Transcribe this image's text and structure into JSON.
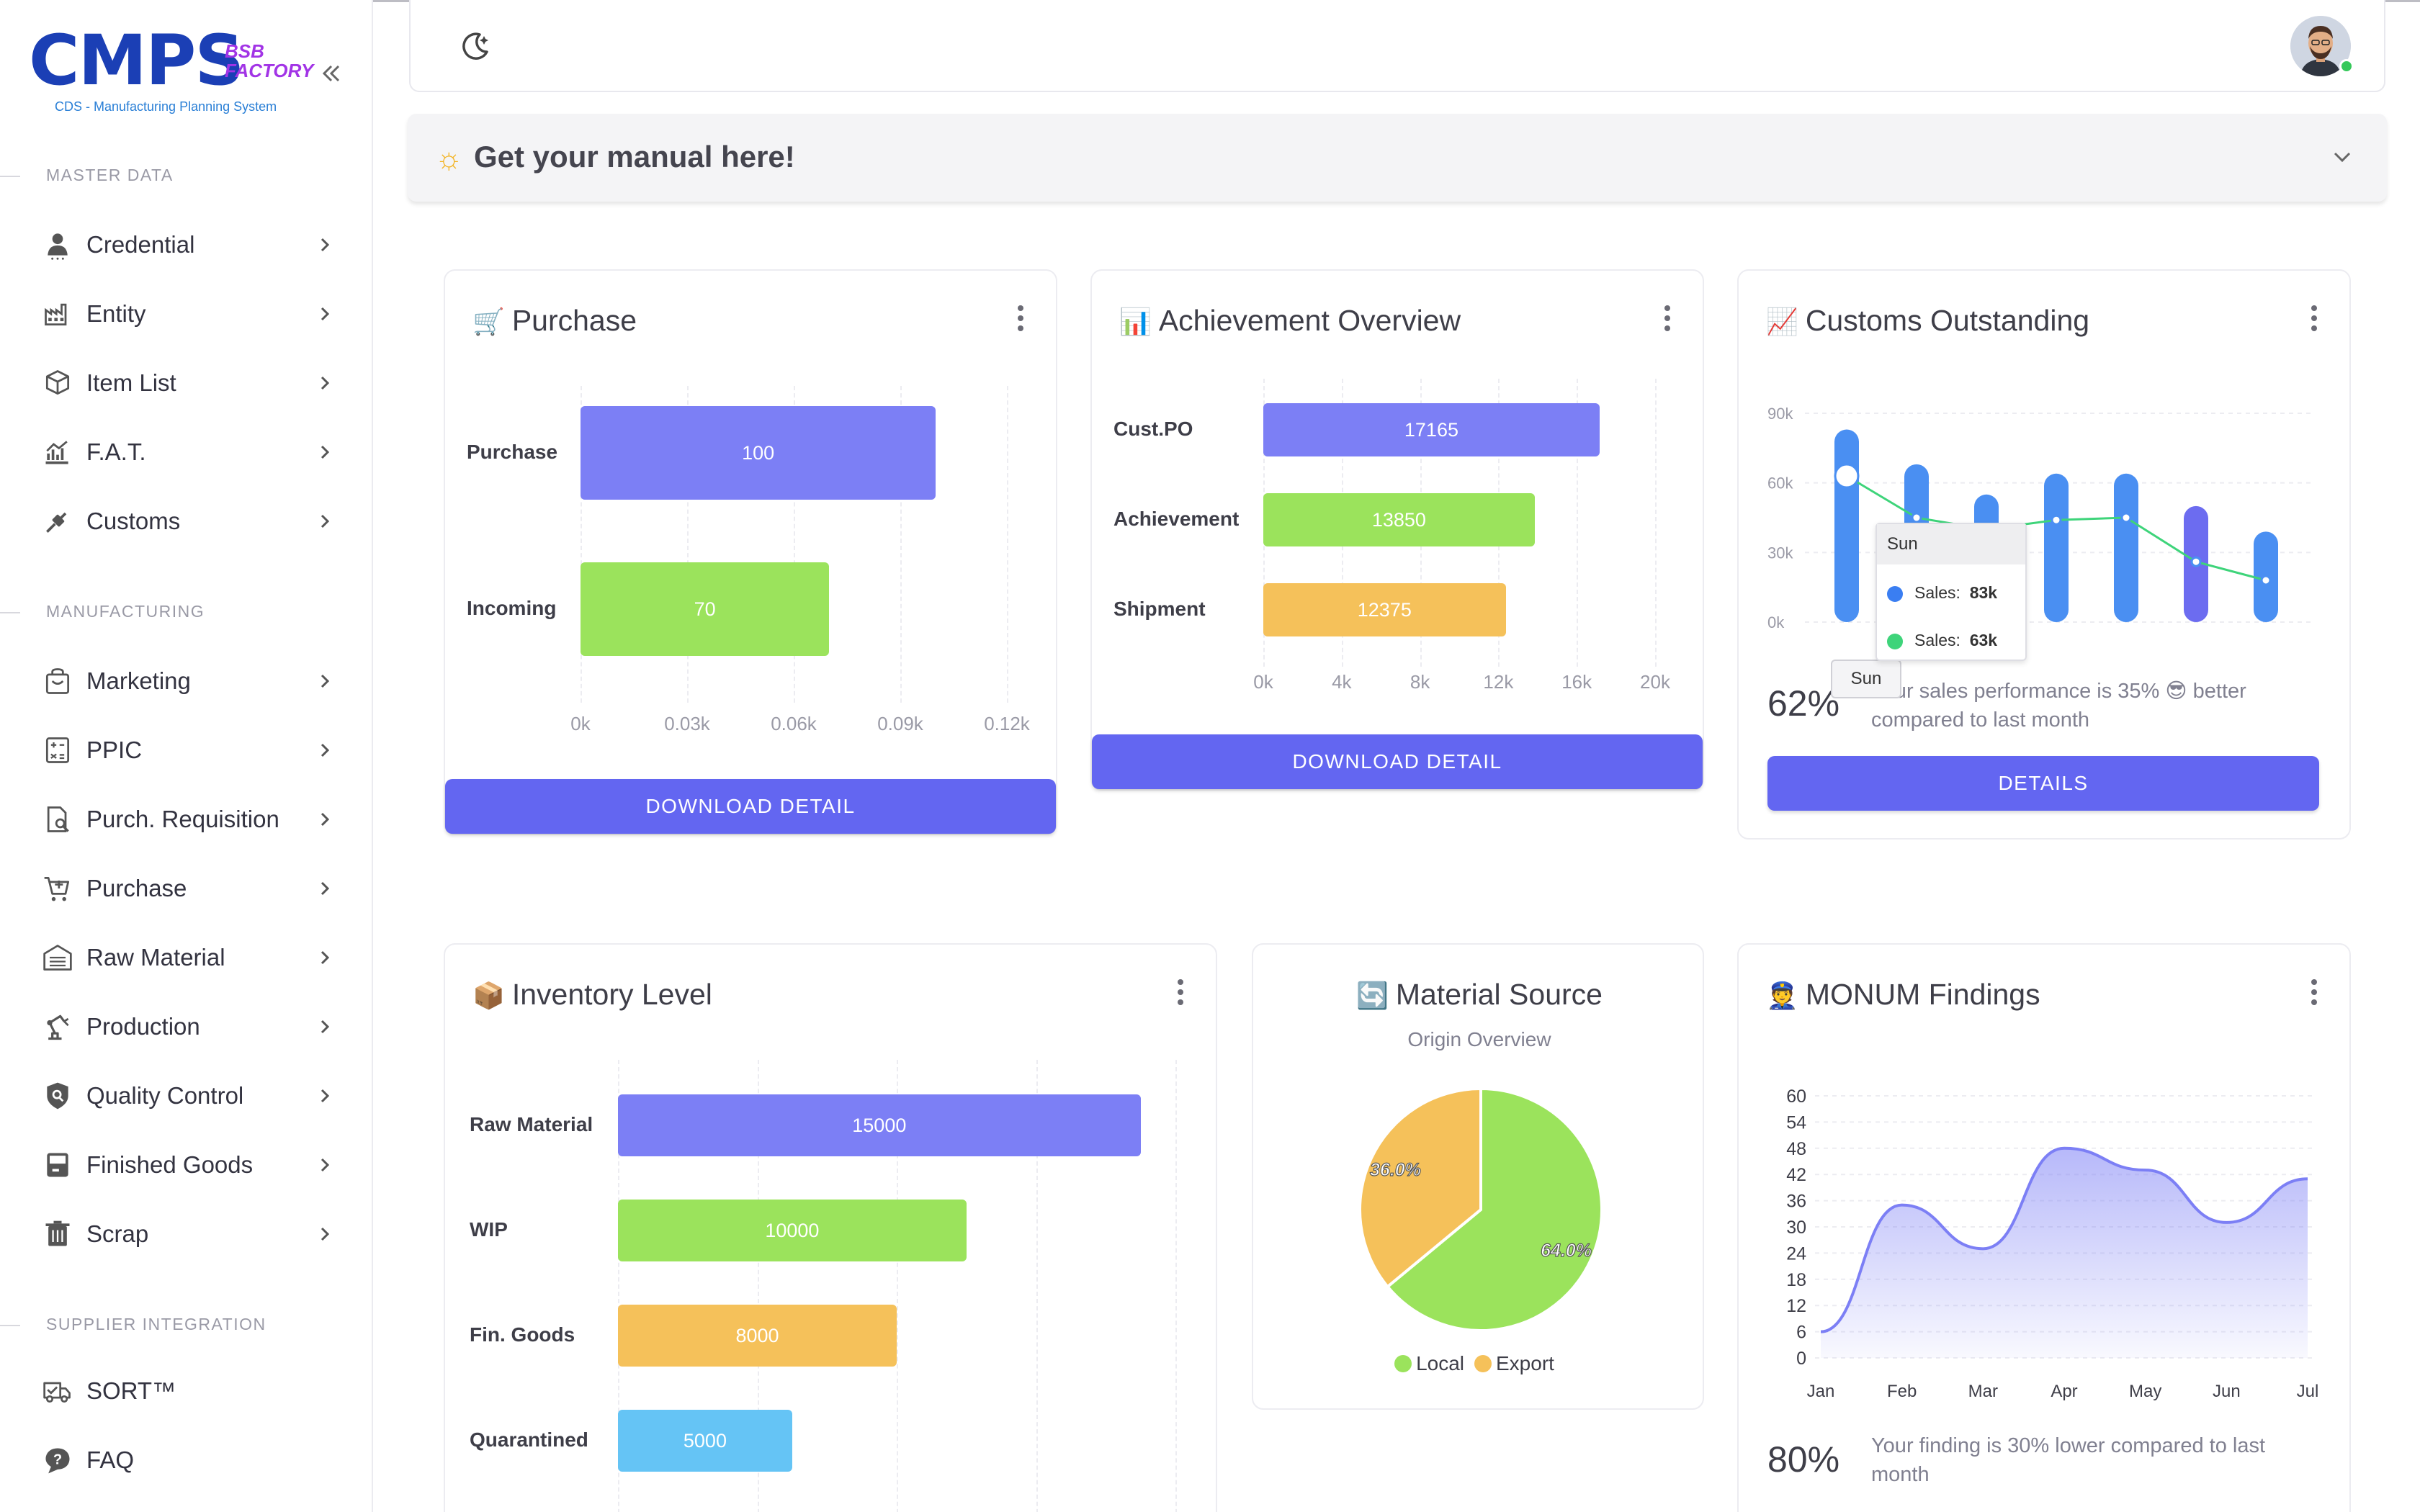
{
  "sidebar": {
    "logo": {
      "main": "CMPS",
      "badge_line1": "BSB",
      "badge_line2": "FACTORY",
      "subtitle": "CDS - Manufacturing Planning System"
    },
    "sections": [
      {
        "label": "MASTER DATA",
        "items": [
          {
            "label": "Credential",
            "icon": "user-icon"
          },
          {
            "label": "Entity",
            "icon": "factory-icon"
          },
          {
            "label": "Item List",
            "icon": "box-icon"
          },
          {
            "label": "F.A.T.",
            "icon": "chart-up-icon"
          },
          {
            "label": "Customs",
            "icon": "plug-icon"
          }
        ]
      },
      {
        "label": "MANUFACTURING",
        "items": [
          {
            "label": "Marketing",
            "icon": "bag-icon"
          },
          {
            "label": "PPIC",
            "icon": "calculator-icon"
          },
          {
            "label": "Purch. Requisition",
            "icon": "doc-search-icon"
          },
          {
            "label": "Purchase",
            "icon": "cart-icon"
          },
          {
            "label": "Raw Material",
            "icon": "warehouse-icon"
          },
          {
            "label": "Production",
            "icon": "robot-arm-icon"
          },
          {
            "label": "Quality Control",
            "icon": "shield-search-icon"
          },
          {
            "label": "Finished Goods",
            "icon": "container-icon"
          },
          {
            "label": "Scrap",
            "icon": "trash-icon"
          }
        ]
      },
      {
        "label": "SUPPLIER INTEGRATION",
        "items": [
          {
            "label": "SORT™",
            "icon": "truck-icon"
          },
          {
            "label": "FAQ",
            "icon": "help-icon"
          }
        ]
      }
    ]
  },
  "manual": {
    "label": "Get your manual here!"
  },
  "purchase_card": {
    "title": "Purchase",
    "button": "DOWNLOAD DETAIL",
    "chart_data": {
      "type": "bar",
      "orientation": "horizontal",
      "categories": [
        "Purchase",
        "Incoming"
      ],
      "values": [
        100,
        70
      ],
      "ticks": [
        "0k",
        "0.03k",
        "0.06k",
        "0.09k",
        "0.12k"
      ],
      "xlim": [
        0,
        120
      ],
      "colors": [
        "#7c7ff5",
        "#9be35c"
      ]
    }
  },
  "achievement_card": {
    "title": "Achievement Overview",
    "button": "DOWNLOAD DETAIL",
    "chart_data": {
      "type": "bar",
      "orientation": "horizontal",
      "categories": [
        "Cust.PO",
        "Achievement",
        "Shipment"
      ],
      "values": [
        17165,
        13850,
        12375
      ],
      "ticks": [
        "0k",
        "4k",
        "8k",
        "12k",
        "16k",
        "20k"
      ],
      "xlim": [
        0,
        20000
      ],
      "colors": [
        "#7c7ff5",
        "#9be35c",
        "#f5c15a"
      ]
    }
  },
  "customs_card": {
    "title": "Customs Outstanding",
    "percent": "62%",
    "summary": "Your sales performance is 35% 😎 better compared to last month",
    "button": "DETAILS",
    "tooltip": {
      "title": "Sun",
      "rows": [
        {
          "label": "Sales:",
          "value": "83k",
          "color": "#3a7ef2"
        },
        {
          "label": "Sales:",
          "value": "63k",
          "color": "#3ed47a"
        }
      ],
      "axis_label": "Sun"
    },
    "chart_data": {
      "type": "bar",
      "y_ticks": [
        "90k",
        "60k",
        "30k",
        "0k"
      ],
      "ylim": [
        0,
        90000
      ],
      "bar_values": [
        83000,
        68000,
        55000,
        64000,
        64000,
        50000,
        39000
      ],
      "line_values": [
        63000,
        45000,
        40000,
        44000,
        45000,
        26000,
        18000
      ],
      "colors": [
        "#4a8ff2",
        "#6c6cf0",
        "#3ed47a"
      ]
    }
  },
  "inventory_card": {
    "title": "Inventory Level",
    "chart_data": {
      "type": "bar",
      "orientation": "horizontal",
      "categories": [
        "Raw Material",
        "WIP",
        "Fin. Goods",
        "Quarantined"
      ],
      "values": [
        15000,
        10000,
        8000,
        5000
      ],
      "xlim": [
        0,
        16000
      ],
      "colors": [
        "#7c7ff5",
        "#9be35c",
        "#f5c15a",
        "#65c4f5"
      ]
    }
  },
  "material_card": {
    "title": "Material Source",
    "subtitle": "Origin Overview",
    "chart_data": {
      "type": "pie",
      "categories": [
        "Local",
        "Export"
      ],
      "values": [
        64.0,
        36.0
      ],
      "labels": [
        "64.0%",
        "36.0%"
      ],
      "colors": [
        "#9be35c",
        "#f5c15a"
      ]
    }
  },
  "monum_card": {
    "title": "MONUM Findings",
    "percent": "80%",
    "summary": "Your finding is 30% lower compared to last month",
    "chart_data": {
      "type": "area",
      "categories": [
        "Jan",
        "Feb",
        "Mar",
        "Apr",
        "May",
        "Jun",
        "Jul"
      ],
      "values": [
        6,
        35,
        25,
        48,
        43,
        31,
        41
      ],
      "y_ticks": [
        "60",
        "54",
        "48",
        "42",
        "36",
        "30",
        "24",
        "18",
        "12",
        "6",
        "0"
      ],
      "ylim": [
        0,
        60
      ],
      "color": "#7c7ff5"
    }
  }
}
